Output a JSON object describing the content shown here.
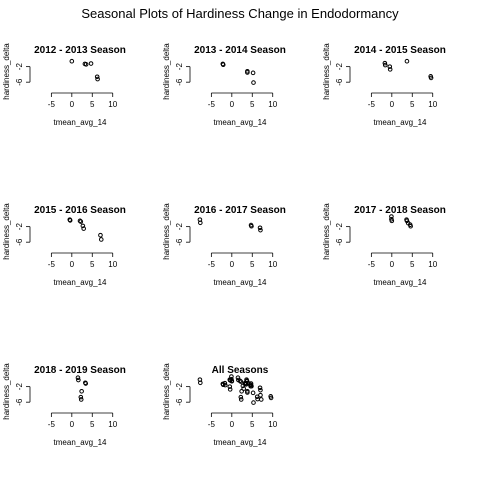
{
  "title": "Seasonal Plots of Hardiness Change in Endodormancy",
  "chart_data": [
    {
      "type": "scatter",
      "title": "2012 - 2013 Season",
      "xlabel": "tmean_avg_14",
      "ylabel": "hardiness_delta",
      "xlim": [
        -9,
        13
      ],
      "ylim": [
        -7.5,
        1
      ],
      "xticks": [
        -5,
        0,
        5,
        10
      ],
      "yticks": [
        -2,
        -6
      ],
      "points": [
        [
          0.0,
          -0.6
        ],
        [
          3.2,
          -1.3
        ],
        [
          3.5,
          -1.4
        ],
        [
          4.7,
          -1.2
        ],
        [
          6.2,
          -4.6
        ],
        [
          6.3,
          -5.2
        ]
      ]
    },
    {
      "type": "scatter",
      "title": "2013 - 2014 Season",
      "xlabel": "tmean_avg_14",
      "ylabel": "hardiness_delta",
      "xlim": [
        -9,
        13
      ],
      "ylim": [
        -7.5,
        1
      ],
      "xticks": [
        -5,
        0,
        5,
        10
      ],
      "yticks": [
        -2,
        -6
      ],
      "points": [
        [
          -2.2,
          -1.3
        ],
        [
          -2.1,
          -1.5
        ],
        [
          3.8,
          -3.2
        ],
        [
          3.8,
          -3.5
        ],
        [
          5.2,
          -3.6
        ],
        [
          5.3,
          -6.1
        ]
      ]
    },
    {
      "type": "scatter",
      "title": "2014 - 2015 Season",
      "xlabel": "tmean_avg_14",
      "ylabel": "hardiness_delta",
      "xlim": [
        -9,
        13
      ],
      "ylim": [
        -7.5,
        1
      ],
      "xticks": [
        -5,
        0,
        5,
        10
      ],
      "yticks": [
        -2,
        -6
      ],
      "points": [
        [
          -1.7,
          -1.1
        ],
        [
          -1.6,
          -1.6
        ],
        [
          -0.5,
          -2.0
        ],
        [
          -0.4,
          -2.7
        ],
        [
          3.7,
          -0.6
        ],
        [
          9.5,
          -4.5
        ],
        [
          9.6,
          -4.9
        ]
      ]
    },
    {
      "type": "scatter",
      "title": "2015 - 2016 Season",
      "xlabel": "tmean_avg_14",
      "ylabel": "hardiness_delta",
      "xlim": [
        -9,
        13
      ],
      "ylim": [
        -7.5,
        1
      ],
      "xticks": [
        -5,
        0,
        5,
        10
      ],
      "yticks": [
        -2,
        -6
      ],
      "points": [
        [
          -0.5,
          -0.2
        ],
        [
          -0.4,
          -0.4
        ],
        [
          2.0,
          -0.5
        ],
        [
          2.2,
          -0.7
        ],
        [
          2.7,
          -1.8
        ],
        [
          2.9,
          -2.5
        ],
        [
          7.0,
          -4.2
        ],
        [
          7.2,
          -5.3
        ]
      ]
    },
    {
      "type": "scatter",
      "title": "2016 - 2017 Season",
      "xlabel": "tmean_avg_14",
      "ylabel": "hardiness_delta",
      "xlim": [
        -9,
        13
      ],
      "ylim": [
        -7.5,
        1
      ],
      "xticks": [
        -5,
        0,
        5,
        10
      ],
      "yticks": [
        -2,
        -6
      ],
      "points": [
        [
          -7.8,
          -0.2
        ],
        [
          -7.7,
          -1.0
        ],
        [
          4.7,
          -1.6
        ],
        [
          4.8,
          -1.9
        ],
        [
          6.9,
          -2.3
        ],
        [
          7.0,
          -2.9
        ]
      ]
    },
    {
      "type": "scatter",
      "title": "2017 - 2018 Season",
      "xlabel": "tmean_avg_14",
      "ylabel": "hardiness_delta",
      "xlim": [
        -9,
        13
      ],
      "ylim": [
        -7.5,
        1
      ],
      "xticks": [
        -5,
        0,
        5,
        10
      ],
      "yticks": [
        -2,
        -6
      ],
      "points": [
        [
          -0.1,
          0.6
        ],
        [
          -0.1,
          -0.1
        ],
        [
          0.0,
          -0.5
        ],
        [
          3.6,
          -0.2
        ],
        [
          3.7,
          -0.5
        ],
        [
          4.0,
          -1.1
        ],
        [
          4.5,
          -1.5
        ],
        [
          4.6,
          -1.9
        ]
      ]
    },
    {
      "type": "scatter",
      "title": "2018 - 2019 Season",
      "xlabel": "tmean_avg_14",
      "ylabel": "hardiness_delta",
      "xlim": [
        -9,
        13
      ],
      "ylim": [
        -7.5,
        1
      ],
      "xticks": [
        -5,
        0,
        5,
        10
      ],
      "yticks": [
        -2,
        -6
      ],
      "points": [
        [
          1.5,
          0.3
        ],
        [
          1.6,
          -0.3
        ],
        [
          3.3,
          -1.0
        ],
        [
          3.4,
          -1.2
        ],
        [
          2.4,
          -3.2
        ],
        [
          2.2,
          -4.7
        ],
        [
          2.3,
          -5.3
        ]
      ]
    },
    {
      "type": "scatter",
      "title": "All Seasons",
      "xlabel": "tmean_avg_14",
      "ylabel": "hardiness_delta",
      "xlim": [
        -9,
        13
      ],
      "ylim": [
        -7.5,
        1
      ],
      "xticks": [
        -5,
        0,
        5,
        10
      ],
      "yticks": [
        -2,
        -6
      ],
      "points": [
        [
          -7.8,
          -0.2
        ],
        [
          -7.7,
          -1.0
        ],
        [
          -2.2,
          -1.3
        ],
        [
          -2.1,
          -1.5
        ],
        [
          -1.7,
          -1.1
        ],
        [
          -1.6,
          -1.6
        ],
        [
          -0.5,
          -2.0
        ],
        [
          -0.4,
          -2.7
        ],
        [
          -0.5,
          -0.2
        ],
        [
          -0.4,
          -0.4
        ],
        [
          -0.1,
          0.6
        ],
        [
          -0.1,
          -0.1
        ],
        [
          0.0,
          -0.5
        ],
        [
          0.0,
          -0.6
        ],
        [
          1.5,
          0.3
        ],
        [
          1.6,
          -0.3
        ],
        [
          2.0,
          -0.5
        ],
        [
          2.2,
          -0.7
        ],
        [
          2.7,
          -1.8
        ],
        [
          2.9,
          -2.5
        ],
        [
          2.4,
          -3.2
        ],
        [
          2.2,
          -4.7
        ],
        [
          2.3,
          -5.3
        ],
        [
          3.2,
          -1.3
        ],
        [
          3.3,
          -1.0
        ],
        [
          3.4,
          -1.2
        ],
        [
          3.5,
          -1.4
        ],
        [
          3.6,
          -0.2
        ],
        [
          3.7,
          -0.5
        ],
        [
          3.7,
          -0.6
        ],
        [
          3.8,
          -3.2
        ],
        [
          3.8,
          -3.5
        ],
        [
          4.0,
          -1.1
        ],
        [
          4.5,
          -1.5
        ],
        [
          4.6,
          -1.9
        ],
        [
          4.7,
          -1.2
        ],
        [
          4.7,
          -1.6
        ],
        [
          4.8,
          -1.9
        ],
        [
          5.2,
          -3.6
        ],
        [
          5.3,
          -6.1
        ],
        [
          6.2,
          -4.6
        ],
        [
          6.3,
          -5.2
        ],
        [
          6.9,
          -2.3
        ],
        [
          7.0,
          -2.9
        ],
        [
          7.0,
          -4.2
        ],
        [
          7.2,
          -5.3
        ],
        [
          9.5,
          -4.5
        ],
        [
          9.6,
          -4.9
        ]
      ]
    }
  ]
}
